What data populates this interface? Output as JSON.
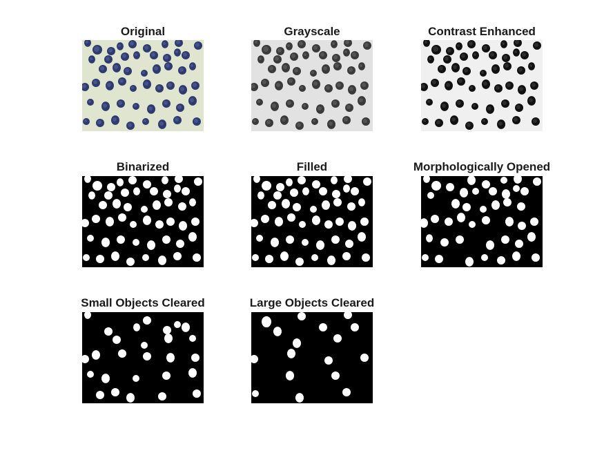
{
  "figure": {
    "panels": [
      {
        "id": "original",
        "title": "Original",
        "style": "color"
      },
      {
        "id": "grayscale",
        "title": "Grayscale",
        "style": "gray"
      },
      {
        "id": "contrast",
        "title": "Contrast Enhanced",
        "style": "contrast"
      },
      {
        "id": "binarized",
        "title": "Binarized",
        "style": "binary"
      },
      {
        "id": "filled",
        "title": "Filled",
        "style": "binary"
      },
      {
        "id": "opened",
        "title": "Morphologically Opened",
        "style": "binary"
      },
      {
        "id": "small_cleared",
        "title": "Small Objects Cleared",
        "style": "binary"
      },
      {
        "id": "large_cleared",
        "title": "Large Objects Cleared",
        "style": "binary"
      }
    ],
    "colors": {
      "original_bg": "#dfe5cf",
      "original_cell": "#2f3a6f",
      "original_cell_light": "#5a6aa0",
      "gray_bg": "#e2e2e2",
      "gray_cell": "#3a3a3a",
      "contrast_bg": "#f0f0f0",
      "contrast_cell": "#111111",
      "binary_bg": "#000000",
      "binary_fg": "#ffffff"
    }
  }
}
